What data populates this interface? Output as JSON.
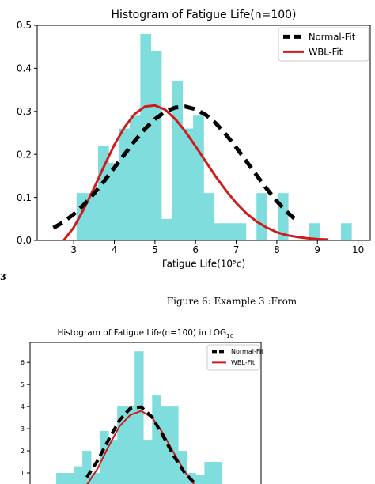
{
  "caption": "Figure 6: Example 3 :From",
  "fragment_text": "3",
  "colors": {
    "hist": "#7fdedd",
    "normal_fit": "#000000",
    "wbl_fit": "#d11a1a",
    "frame": "#000000"
  },
  "chart_data": [
    {
      "type": "bar",
      "title": "Histogram of Fatigue Life(n=100)",
      "xlabel": "Fatigue Life(10⁵c)",
      "ylabel": "",
      "xlim": [
        2.1,
        10.3
      ],
      "ylim": [
        0,
        0.5
      ],
      "xticks": [
        3,
        4,
        5,
        6,
        7,
        8,
        9,
        10
      ],
      "yticks": [
        0.0,
        0.1,
        0.2,
        0.3,
        0.4,
        0.5
      ],
      "tick_labels_x": [
        "3",
        "4",
        "5",
        "6",
        "7",
        "8",
        "9",
        "10"
      ],
      "tick_labels_y": [
        "0.0",
        "0.1",
        "0.2",
        "0.3",
        "0.4",
        "0.5"
      ],
      "grid": false,
      "legend": {
        "position": "top-right",
        "entries": [
          "Normal-Fit",
          "WBL-Fit"
        ]
      },
      "bins": {
        "edges": [
          3.07,
          3.33,
          3.6,
          3.86,
          4.12,
          4.38,
          4.64,
          4.9,
          5.16,
          5.42,
          5.68,
          5.94,
          6.2,
          6.46,
          6.72,
          6.98,
          7.24,
          7.5,
          7.76,
          8.02,
          8.28,
          8.54,
          8.8,
          9.06,
          9.32,
          9.58,
          9.84,
          10.1
        ],
        "values": [
          0.11,
          0.11,
          0.22,
          0.18,
          0.26,
          0.29,
          0.48,
          0.44,
          0.05,
          0.37,
          0.26,
          0.29,
          0.11,
          0.04,
          0.04,
          0.04,
          0.0,
          0.11,
          0.0,
          0.11,
          0.0,
          0.0,
          0.04,
          0.0,
          0.0,
          0.04,
          0.0
        ]
      },
      "series": [
        {
          "name": "Normal-Fit",
          "x": [
            2.5,
            2.75,
            3.0,
            3.25,
            3.5,
            3.75,
            4.0,
            4.25,
            4.5,
            4.75,
            5.0,
            5.25,
            5.5,
            5.75,
            6.0,
            6.25,
            6.5,
            6.75,
            7.0,
            7.25,
            7.5,
            7.75,
            8.0,
            8.25,
            8.5
          ],
          "y": [
            0.029,
            0.043,
            0.061,
            0.083,
            0.109,
            0.138,
            0.169,
            0.2,
            0.231,
            0.259,
            0.282,
            0.299,
            0.309,
            0.311,
            0.305,
            0.292,
            0.272,
            0.246,
            0.216,
            0.184,
            0.152,
            0.12,
            0.091,
            0.066,
            0.045
          ]
        },
        {
          "name": "WBL-Fit",
          "x": [
            2.75,
            3.0,
            3.25,
            3.5,
            3.75,
            4.0,
            4.25,
            4.5,
            4.75,
            5.0,
            5.25,
            5.5,
            5.75,
            6.0,
            6.25,
            6.5,
            6.75,
            7.0,
            7.25,
            7.5,
            7.75,
            8.0,
            8.25,
            8.5,
            8.75,
            9.0,
            9.25
          ],
          "y": [
            0.0,
            0.03,
            0.073,
            0.122,
            0.173,
            0.222,
            0.263,
            0.294,
            0.311,
            0.314,
            0.304,
            0.282,
            0.253,
            0.219,
            0.183,
            0.148,
            0.116,
            0.087,
            0.063,
            0.044,
            0.03,
            0.019,
            0.012,
            0.008,
            0.005,
            0.003,
            0.002
          ]
        }
      ]
    },
    {
      "type": "bar",
      "title": "Histogram of Fatigue Life(n=100) in LOG",
      "title_subscript": "10",
      "xlabel": "",
      "ylabel": "",
      "xlim": [
        0.42,
        0.95
      ],
      "ylim": [
        0,
        6.9
      ],
      "yticks": [
        1,
        2,
        3,
        4,
        5,
        6
      ],
      "tick_labels_y": [
        "1",
        "2",
        "3",
        "4",
        "5",
        "6"
      ],
      "grid": false,
      "legend": {
        "position": "top-right",
        "entries": [
          "Normal-Fit",
          "WBL-Fit"
        ]
      },
      "bins": {
        "edges": [
          0.48,
          0.5,
          0.52,
          0.54,
          0.56,
          0.58,
          0.6,
          0.62,
          0.64,
          0.66,
          0.68,
          0.7,
          0.72,
          0.74,
          0.76,
          0.78,
          0.8,
          0.82,
          0.84,
          0.86,
          0.88
        ],
        "values": [
          1.0,
          1.0,
          1.3,
          2.0,
          1.0,
          2.9,
          2.5,
          4.0,
          4.0,
          6.5,
          2.5,
          4.5,
          4.0,
          4.0,
          2.0,
          1.0,
          0.9,
          1.5,
          1.5,
          0.0
        ]
      },
      "series": [
        {
          "name": "Normal-Fit",
          "x": [
            0.55,
            0.575,
            0.6,
            0.625,
            0.65,
            0.675,
            0.7,
            0.725,
            0.75,
            0.775,
            0.8
          ],
          "y": [
            0.8,
            1.56,
            2.5,
            3.38,
            3.92,
            3.98,
            3.52,
            2.68,
            1.76,
            1.0,
            0.48
          ]
        },
        {
          "name": "WBL-Fit",
          "x": [
            0.55,
            0.575,
            0.6,
            0.625,
            0.65,
            0.675,
            0.7,
            0.725,
            0.75,
            0.775,
            0.8
          ],
          "y": [
            0.45,
            1.2,
            2.2,
            3.1,
            3.62,
            3.8,
            3.5,
            2.8,
            1.9,
            1.05,
            0.4
          ]
        }
      ]
    }
  ]
}
